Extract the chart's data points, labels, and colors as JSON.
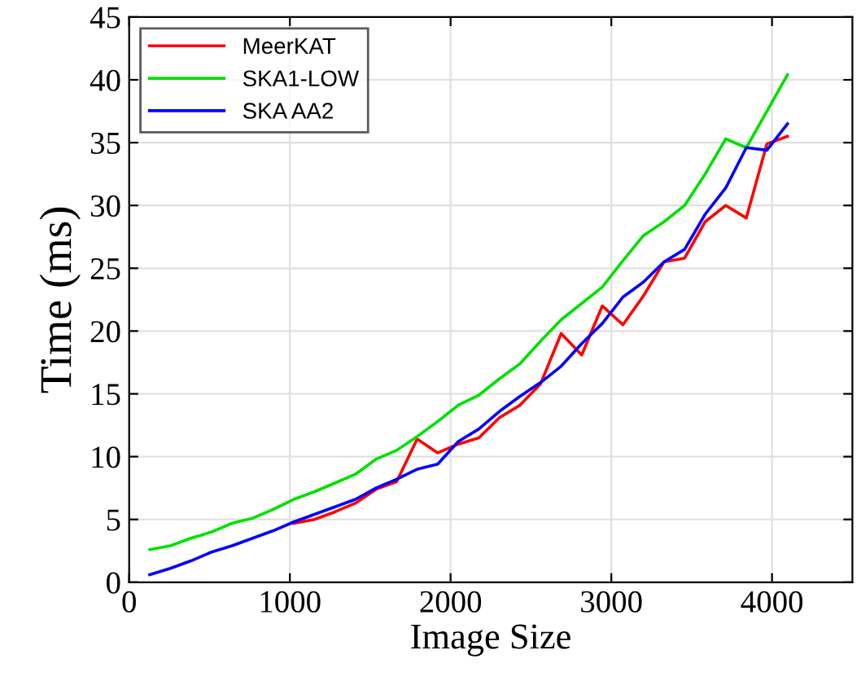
{
  "chart_data": {
    "type": "line",
    "xlabel": "Image Size",
    "ylabel": "Time (ms)",
    "x": [
      128,
      256,
      384,
      512,
      640,
      768,
      896,
      1024,
      1152,
      1280,
      1408,
      1536,
      1664,
      1792,
      1920,
      2048,
      2176,
      2304,
      2432,
      2560,
      2688,
      2816,
      2944,
      3072,
      3200,
      3328,
      3456,
      3584,
      3712,
      3840,
      3968,
      4096
    ],
    "series": [
      {
        "name": "MeerKAT",
        "color": "#ff0000",
        "values": [
          null,
          null,
          null,
          null,
          null,
          null,
          null,
          4.7,
          5.0,
          5.6,
          6.3,
          7.4,
          8.0,
          11.4,
          10.3,
          11.0,
          11.5,
          13.1,
          14.1,
          15.8,
          19.8,
          18.1,
          22.0,
          20.5,
          22.8,
          25.5,
          25.8,
          28.7,
          30.0,
          29.0,
          34.9,
          35.5
        ]
      },
      {
        "name": "SKA1-LOW",
        "color": "#00e000",
        "values": [
          2.6,
          2.9,
          3.5,
          4.0,
          4.7,
          5.1,
          5.8,
          6.6,
          7.2,
          7.9,
          8.6,
          9.8,
          10.5,
          11.6,
          12.8,
          14.1,
          14.9,
          16.2,
          17.4,
          19.2,
          20.9,
          22.2,
          23.5,
          25.6,
          27.6,
          28.7,
          30.0,
          32.5,
          35.3,
          34.6,
          37.5,
          40.4
        ]
      },
      {
        "name": "SKA AA2",
        "color": "#0000ff",
        "values": [
          0.6,
          1.1,
          1.7,
          2.4,
          2.9,
          3.5,
          4.1,
          4.8,
          5.4,
          6.0,
          6.6,
          7.5,
          8.2,
          9.0,
          9.4,
          11.2,
          12.2,
          13.6,
          14.8,
          15.9,
          17.2,
          19.0,
          20.6,
          22.7,
          23.9,
          25.5,
          26.5,
          29.3,
          31.4,
          34.6,
          34.4,
          36.5
        ]
      }
    ],
    "xlim": [
      0,
      4500
    ],
    "xticks": [
      0,
      1000,
      2000,
      3000,
      4000
    ],
    "ylim": [
      0,
      45
    ],
    "yticks": [
      0,
      5,
      10,
      15,
      20,
      25,
      30,
      35,
      40,
      45
    ],
    "grid": true,
    "legend": "top left",
    "marker": "none",
    "line_style": "solid"
  }
}
